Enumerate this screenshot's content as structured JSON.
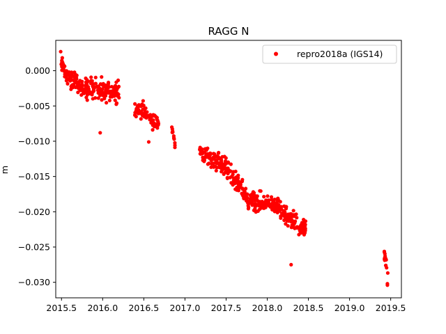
{
  "chart_data": {
    "type": "scatter",
    "title": "RAGG N",
    "xlabel": "",
    "ylabel": "m",
    "xlim": [
      2015.43,
      2019.63
    ],
    "ylim": [
      -0.0322,
      0.0043
    ],
    "xticks": [
      2015.5,
      2016.0,
      2016.5,
      2017.0,
      2017.5,
      2018.0,
      2018.5,
      2019.0,
      2019.5
    ],
    "xtick_labels": [
      "2015.5",
      "2016.0",
      "2016.5",
      "2017.0",
      "2017.5",
      "2018.0",
      "2018.5",
      "2019.0",
      "2019.5"
    ],
    "yticks": [
      0.0,
      -0.005,
      -0.01,
      -0.015,
      -0.02,
      -0.025,
      -0.03
    ],
    "ytick_labels": [
      "0.000",
      "−0.005",
      "−0.010",
      "−0.015",
      "−0.020",
      "−0.025",
      "−0.030"
    ],
    "grid": false,
    "legend": {
      "position": "upper right"
    },
    "series": [
      {
        "name": "repro2018a (IGS14)",
        "color": "#ff0000",
        "marker": "o",
        "segments": [
          {
            "x_start": 2015.49,
            "x_end": 2015.55,
            "y_start": 0.0012,
            "y_end": -0.0003,
            "spread": 0.0008,
            "count": 24
          },
          {
            "x_start": 2015.55,
            "x_end": 2015.8,
            "y_start": -0.0008,
            "y_end": -0.0025,
            "spread": 0.001,
            "count": 80
          },
          {
            "x_start": 2015.8,
            "x_end": 2016.2,
            "y_start": -0.0025,
            "y_end": -0.003,
            "spread": 0.0013,
            "count": 120
          },
          {
            "x_start": 2016.39,
            "x_end": 2016.68,
            "y_start": -0.005,
            "y_end": -0.0075,
            "spread": 0.001,
            "count": 90
          },
          {
            "x_start": 2016.84,
            "x_end": 2016.88,
            "y_start": -0.0085,
            "y_end": -0.0102,
            "spread": 0.0005,
            "count": 12
          },
          {
            "x_start": 2017.18,
            "x_end": 2017.5,
            "y_start": -0.0115,
            "y_end": -0.0135,
            "spread": 0.0011,
            "count": 110
          },
          {
            "x_start": 2017.5,
            "x_end": 2017.75,
            "y_start": -0.014,
            "y_end": -0.0178,
            "spread": 0.0011,
            "count": 85
          },
          {
            "x_start": 2017.75,
            "x_end": 2018.15,
            "y_start": -0.0185,
            "y_end": -0.019,
            "spread": 0.0011,
            "count": 130
          },
          {
            "x_start": 2018.15,
            "x_end": 2018.47,
            "y_start": -0.02,
            "y_end": -0.0225,
            "spread": 0.001,
            "count": 100
          },
          {
            "x_start": 2019.42,
            "x_end": 2019.47,
            "y_start": -0.0262,
            "y_end": -0.0285,
            "spread": 0.0008,
            "count": 14
          }
        ],
        "outliers": [
          {
            "x": 2015.49,
            "y": 0.0027
          },
          {
            "x": 2015.97,
            "y": -0.0088
          },
          {
            "x": 2016.56,
            "y": -0.0101
          },
          {
            "x": 2018.29,
            "y": -0.0275
          },
          {
            "x": 2019.46,
            "y": -0.0302
          },
          {
            "x": 2019.46,
            "y": -0.0304
          }
        ]
      }
    ]
  }
}
